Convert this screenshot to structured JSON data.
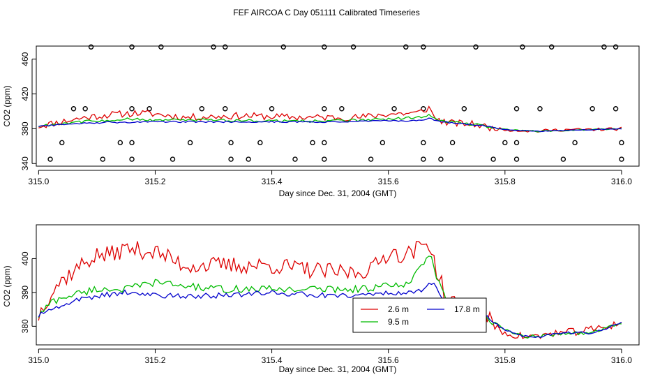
{
  "title": "FEF AIRCOA C  Day 051111  Calibrated Timeseries",
  "chart_data": [
    {
      "type": "line",
      "id": "top",
      "xlabel": "Day since Dec. 31, 2004 (GMT)",
      "ylabel": "CO2 (ppm)",
      "xlim": [
        314.996,
        316.03
      ],
      "ylim": [
        337,
        475
      ],
      "xticks": [
        315.0,
        315.2,
        315.4,
        315.6,
        315.8,
        316.0
      ],
      "xtick_labels": [
        "315.0",
        "315.2",
        "315.4",
        "315.6",
        "315.8",
        "316.0"
      ],
      "yticks": [
        340,
        380,
        420,
        460
      ],
      "ytick_labels": [
        "340",
        "380",
        "420",
        "460"
      ],
      "series_anchors": [
        {
          "name": "2.6 m",
          "color": "#dd0000",
          "key": [
            [
              315.0,
              383
            ],
            [
              315.03,
              387
            ],
            [
              315.08,
              393
            ],
            [
              315.12,
              396
            ],
            [
              315.17,
              398
            ],
            [
              315.2,
              397
            ],
            [
              315.25,
              393
            ],
            [
              315.3,
              394
            ],
            [
              315.35,
              395
            ],
            [
              315.4,
              394
            ],
            [
              315.45,
              393
            ],
            [
              315.5,
              393
            ],
            [
              315.55,
              393
            ],
            [
              315.6,
              397
            ],
            [
              315.65,
              398
            ],
            [
              315.67,
              404
            ],
            [
              315.68,
              392
            ],
            [
              315.7,
              387
            ],
            [
              315.75,
              385
            ],
            [
              315.78,
              380
            ],
            [
              315.8,
              379
            ],
            [
              315.83,
              378
            ],
            [
              315.85,
              377
            ],
            [
              315.9,
              379
            ],
            [
              315.95,
              379
            ],
            [
              316.0,
              380
            ]
          ],
          "amp": 4.0
        },
        {
          "name": "9.5 m",
          "color": "#00bb00",
          "key": [
            [
              315.0,
              383
            ],
            [
              315.05,
              387
            ],
            [
              315.1,
              389
            ],
            [
              315.15,
              391
            ],
            [
              315.2,
              390
            ],
            [
              315.3,
              390
            ],
            [
              315.4,
              389
            ],
            [
              315.5,
              389
            ],
            [
              315.6,
              391
            ],
            [
              315.65,
              393
            ],
            [
              315.67,
              396
            ],
            [
              315.69,
              389
            ],
            [
              315.72,
              387
            ],
            [
              315.76,
              384
            ],
            [
              315.8,
              379
            ],
            [
              315.83,
              378
            ],
            [
              315.86,
              377
            ],
            [
              315.9,
              378
            ],
            [
              315.95,
              379
            ],
            [
              316.0,
              380
            ]
          ],
          "amp": 1.6
        },
        {
          "name": "17.8 m",
          "color": "#0000cc",
          "key": [
            [
              315.0,
              383
            ],
            [
              315.05,
              385
            ],
            [
              315.1,
              387
            ],
            [
              315.2,
              388
            ],
            [
              315.3,
              388
            ],
            [
              315.4,
              388
            ],
            [
              315.5,
              388
            ],
            [
              315.6,
              389
            ],
            [
              315.65,
              389
            ],
            [
              315.67,
              392
            ],
            [
              315.69,
              388
            ],
            [
              315.72,
              386
            ],
            [
              315.76,
              384
            ],
            [
              315.8,
              379
            ],
            [
              315.83,
              378
            ],
            [
              315.86,
              377
            ],
            [
              315.9,
              378
            ],
            [
              315.95,
              379
            ],
            [
              316.0,
              380
            ]
          ],
          "amp": 0.9
        }
      ],
      "circle_markers": {
        "y474": [
          315.09,
          315.16,
          315.21,
          315.3,
          315.32,
          315.42,
          315.49,
          315.54,
          315.63,
          315.66,
          315.75,
          315.83,
          315.88,
          315.97,
          315.99
        ],
        "y403": [
          315.06,
          315.08,
          315.16,
          315.19,
          315.28,
          315.32,
          315.4,
          315.49,
          315.52,
          315.61,
          315.66,
          315.73,
          315.82,
          315.86,
          315.95,
          315.99
        ],
        "y364": [
          315.04,
          315.14,
          315.16,
          315.26,
          315.33,
          315.38,
          315.47,
          315.49,
          315.59,
          315.66,
          315.71,
          315.8,
          315.82,
          315.92,
          316.0
        ],
        "y345": [
          315.02,
          315.11,
          315.16,
          315.23,
          315.33,
          315.36,
          315.44,
          315.49,
          315.57,
          315.66,
          315.69,
          315.78,
          315.82,
          315.9,
          316.0
        ]
      }
    },
    {
      "type": "line",
      "id": "bottom",
      "xlabel": "Day since Dec. 31, 2004 (GMT)",
      "ylabel": "CO2 (ppm)",
      "xlim": [
        314.996,
        316.03
      ],
      "ylim": [
        374.5,
        410
      ],
      "xticks": [
        315.0,
        315.2,
        315.4,
        315.6,
        315.8,
        316.0
      ],
      "xtick_labels": [
        "315.0",
        "315.2",
        "315.4",
        "315.6",
        "315.8",
        "316.0"
      ],
      "yticks": [
        380,
        390,
        400
      ],
      "ytick_labels": [
        "380",
        "390",
        "400"
      ],
      "series_anchors": [
        {
          "name": "2.6 m",
          "color": "#dd0000",
          "key": [
            [
              315.0,
              383
            ],
            [
              315.01,
              387
            ],
            [
              315.03,
              392
            ],
            [
              315.05,
              395
            ],
            [
              315.08,
              399
            ],
            [
              315.1,
              401
            ],
            [
              315.12,
              401
            ],
            [
              315.15,
              403
            ],
            [
              315.2,
              402
            ],
            [
              315.25,
              398
            ],
            [
              315.3,
              398
            ],
            [
              315.35,
              398
            ],
            [
              315.4,
              398
            ],
            [
              315.45,
              397
            ],
            [
              315.5,
              396
            ],
            [
              315.55,
              396
            ],
            [
              315.58,
              398
            ],
            [
              315.6,
              402
            ],
            [
              315.63,
              401
            ],
            [
              315.65,
              403
            ],
            [
              315.67,
              405
            ],
            [
              315.68,
              398
            ],
            [
              315.7,
              388
            ],
            [
              315.72,
              386
            ],
            [
              315.75,
              386
            ],
            [
              315.77,
              383
            ],
            [
              315.78,
              380
            ],
            [
              315.8,
              378
            ],
            [
              315.83,
              377
            ],
            [
              315.86,
              377
            ],
            [
              315.88,
              378
            ],
            [
              315.9,
              378
            ],
            [
              315.95,
              379
            ],
            [
              316.0,
              381
            ]
          ],
          "amp": 2.6
        },
        {
          "name": "9.5 m",
          "color": "#00bb00",
          "key": [
            [
              315.0,
              383
            ],
            [
              315.02,
              387
            ],
            [
              315.05,
              389
            ],
            [
              315.1,
              391
            ],
            [
              315.15,
              391
            ],
            [
              315.2,
              393
            ],
            [
              315.25,
              392
            ],
            [
              315.3,
              391
            ],
            [
              315.4,
              391
            ],
            [
              315.5,
              391
            ],
            [
              315.55,
              391
            ],
            [
              315.6,
              392
            ],
            [
              315.63,
              392
            ],
            [
              315.66,
              398
            ],
            [
              315.67,
              402
            ],
            [
              315.68,
              396
            ],
            [
              315.7,
              387
            ],
            [
              315.75,
              385
            ],
            [
              315.78,
              381
            ],
            [
              315.8,
              379
            ],
            [
              315.83,
              377
            ],
            [
              315.86,
              377
            ],
            [
              315.9,
              378
            ],
            [
              315.95,
              378
            ],
            [
              316.0,
              381
            ]
          ],
          "amp": 1.1
        },
        {
          "name": "17.8 m",
          "color": "#0000cc",
          "key": [
            [
              315.0,
              383
            ],
            [
              315.02,
              385
            ],
            [
              315.05,
              387
            ],
            [
              315.1,
              389
            ],
            [
              315.15,
              390
            ],
            [
              315.2,
              389
            ],
            [
              315.3,
              389
            ],
            [
              315.4,
              390
            ],
            [
              315.5,
              389
            ],
            [
              315.55,
              389
            ],
            [
              315.6,
              390
            ],
            [
              315.65,
              390
            ],
            [
              315.67,
              392
            ],
            [
              315.68,
              393
            ],
            [
              315.69,
              389
            ],
            [
              315.7,
              386
            ],
            [
              315.75,
              385
            ],
            [
              315.78,
              381
            ],
            [
              315.8,
              379
            ],
            [
              315.83,
              377
            ],
            [
              315.86,
              377
            ],
            [
              315.9,
              378
            ],
            [
              315.95,
              378
            ],
            [
              316.0,
              381
            ]
          ],
          "amp": 0.8
        }
      ],
      "legend": {
        "placement": "bottom-center",
        "entries": [
          {
            "name": "2.6 m",
            "color": "#dd0000"
          },
          {
            "name": "17.8 m",
            "color": "#0000cc"
          },
          {
            "name": "9.5 m",
            "color": "#00bb00"
          }
        ]
      }
    }
  ]
}
